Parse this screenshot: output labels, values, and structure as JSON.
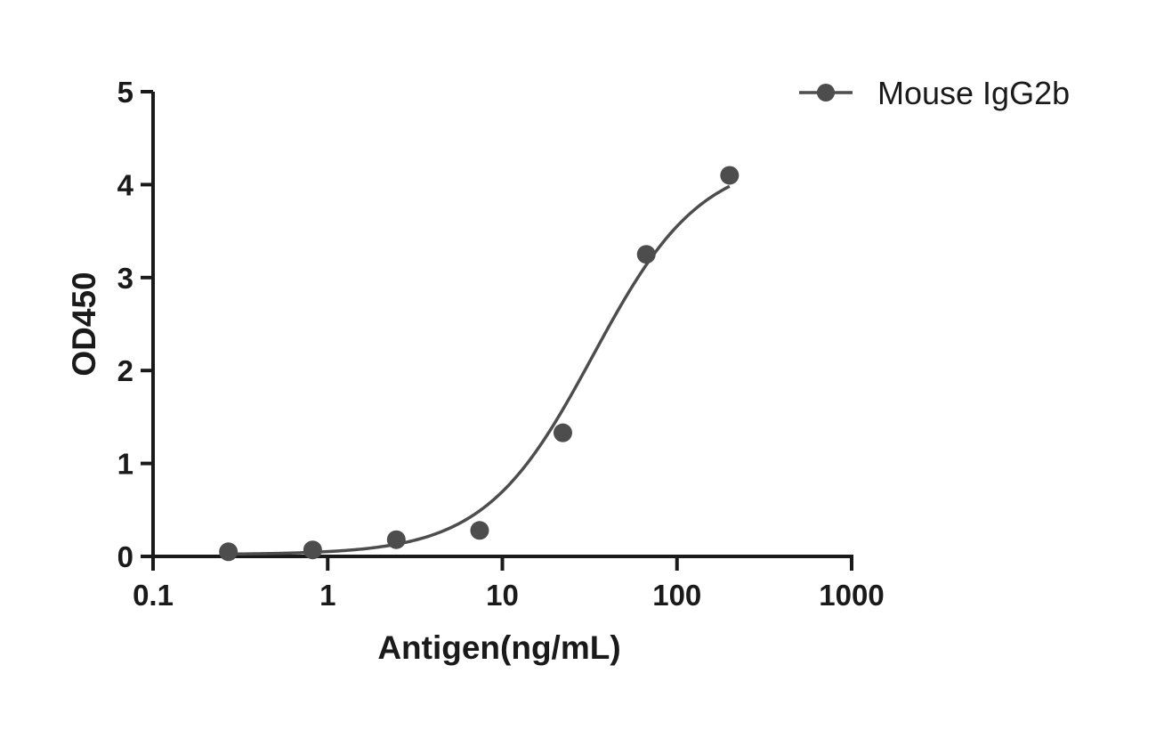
{
  "chart_data": {
    "type": "scatter",
    "xlabel": "Antigen(ng/mL)",
    "ylabel": "OD450",
    "x_scale": "log",
    "xlim": [
      0.1,
      1000
    ],
    "ylim": [
      0,
      5
    ],
    "x_ticks": [
      0.1,
      1,
      10,
      100,
      1000
    ],
    "x_tick_labels": [
      "0.1",
      "1",
      "10",
      "100",
      "1000"
    ],
    "y_ticks": [
      0,
      1,
      2,
      3,
      4,
      5
    ],
    "y_tick_labels": [
      "0",
      "1",
      "2",
      "3",
      "4",
      "5"
    ],
    "grid": false,
    "legend": "top-right",
    "colors": {
      "series": "#4d4d4d",
      "axis": "#1a1a1a"
    },
    "series": [
      {
        "name": "Mouse IgG2b",
        "x": [
          0.27,
          0.82,
          2.47,
          7.41,
          22.2,
          66.7,
          200
        ],
        "y": [
          0.05,
          0.07,
          0.18,
          0.28,
          1.33,
          3.25,
          4.1
        ],
        "fit": {
          "model": "4PL",
          "bottom": 0.02,
          "top": 4.3,
          "ec50": 33,
          "hill": 1.4,
          "x_range": [
            0.27,
            200
          ]
        }
      }
    ]
  }
}
